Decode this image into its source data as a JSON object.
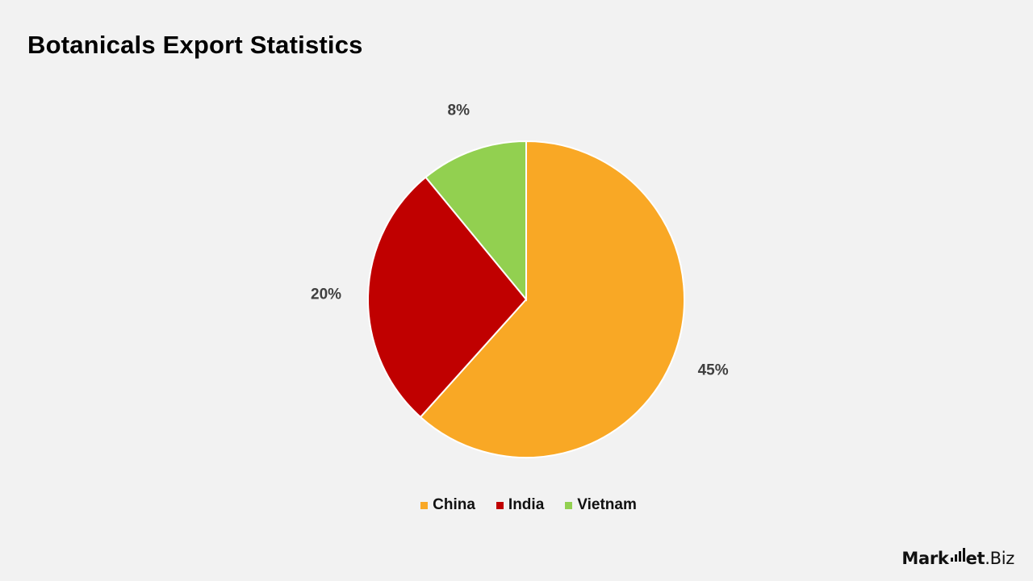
{
  "chart_data": {
    "type": "pie",
    "title": "Botanicals Export Statistics",
    "slices": [
      {
        "label": "China",
        "value": 45,
        "display": "45%",
        "color": "#f9a825"
      },
      {
        "label": "India",
        "value": 20,
        "display": "20%",
        "color": "#c00000"
      },
      {
        "label": "Vietnam",
        "value": 8,
        "display": "8%",
        "color": "#92d050"
      }
    ],
    "legend_position": "bottom",
    "background": "#f2f2f2",
    "label_color": "#404040"
  },
  "legend": {
    "items": [
      {
        "label": "China",
        "color": "#f9a825"
      },
      {
        "label": "India",
        "color": "#c00000"
      },
      {
        "label": "Vietnam",
        "color": "#92d050"
      }
    ]
  },
  "brand": {
    "name_part1": "Mark",
    "name_part2": "et",
    "name_part3": ".Biz",
    "icon": "bar-chart-icon"
  }
}
